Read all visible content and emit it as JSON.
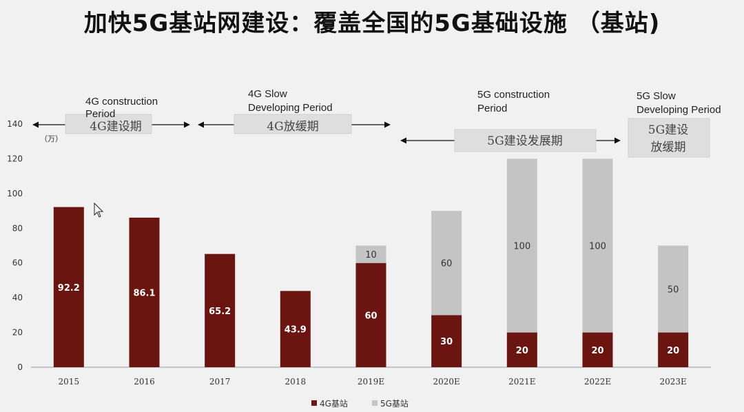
{
  "title": "加快5G基站网建设：覆盖全国的5G基础设施 （基站)",
  "chart_data": {
    "type": "bar",
    "stacked": true,
    "categories": [
      "2015",
      "2016",
      "2017",
      "2018",
      "2019E",
      "2020E",
      "2021E",
      "2022E",
      "2023E"
    ],
    "series": [
      {
        "name": "4G基站",
        "color": "#6b1510",
        "values": [
          92.2,
          86.1,
          65.2,
          43.9,
          60,
          30,
          20,
          20,
          20
        ],
        "labels": [
          "92.2",
          "86.1",
          "65.2",
          "43.9",
          "60",
          "30",
          "20",
          "20",
          "20"
        ]
      },
      {
        "name": "5G基站",
        "color": "#c4c4c4",
        "values": [
          null,
          null,
          null,
          null,
          10,
          60,
          100,
          100,
          50
        ],
        "labels": [
          null,
          null,
          null,
          null,
          "10",
          "60",
          "100",
          "100",
          "50"
        ]
      }
    ],
    "ylim": [
      0,
      140
    ],
    "yticks": [
      "0",
      "20",
      "40",
      "60",
      "80",
      "100",
      "120",
      "140"
    ],
    "unit_label": "（万）",
    "legend_position": "bottom-center",
    "grid": false,
    "annotations": [
      {
        "en": "4G construction Period",
        "en_lines": [
          "4G construction",
          "Period"
        ],
        "zh": "4G建设期"
      },
      {
        "en": "4G Slow Developing Period",
        "en_lines": [
          "4G Slow",
          "Developing Period"
        ],
        "zh": "4G放缓期"
      },
      {
        "en": "5G construction Period",
        "en_lines": [
          "5G construction",
          "Period"
        ],
        "zh": "5G建设发展期"
      },
      {
        "en": "5G Slow Developing Period",
        "en_lines": [
          "5G Slow",
          "Developing Period"
        ],
        "zh_lines": [
          "5G建设",
          "放缓期"
        ]
      }
    ]
  }
}
